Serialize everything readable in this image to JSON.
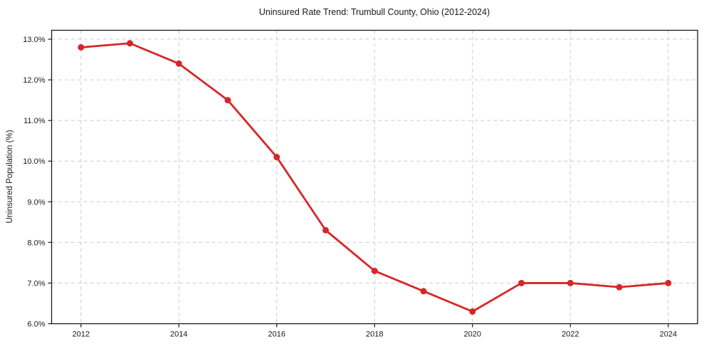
{
  "chart_data": {
    "type": "line",
    "title": "Uninsured Rate Trend: Trumbull County, Ohio (2012-2024)",
    "xlabel": "",
    "ylabel": "Uninsured Population (%)",
    "x": [
      2012,
      2013,
      2014,
      2015,
      2016,
      2017,
      2018,
      2019,
      2020,
      2021,
      2022,
      2023,
      2024
    ],
    "values": [
      12.8,
      12.9,
      12.4,
      11.5,
      10.1,
      8.3,
      7.3,
      6.8,
      6.3,
      7.0,
      7.0,
      6.9,
      7.0
    ],
    "xticks": {
      "values": [
        2012,
        2014,
        2016,
        2018,
        2020,
        2022,
        2024
      ],
      "labels": [
        "2012",
        "2014",
        "2016",
        "2018",
        "2020",
        "2022",
        "2024"
      ]
    },
    "yticks": {
      "values": [
        6,
        7,
        8,
        9,
        10,
        11,
        12,
        13
      ],
      "labels": [
        "6.0%",
        "7.0%",
        "8.0%",
        "9.0%",
        "10.0%",
        "11.0%",
        "12.0%",
        "13.0%"
      ]
    },
    "xlim": [
      2011.4,
      2024.6
    ],
    "ylim": [
      6.0,
      13.22
    ],
    "grid": true,
    "grid_style": "dashed",
    "legend": false,
    "colors": {
      "line": "#d62728",
      "marker": "#d62728",
      "grid": "#cccccc",
      "axis": "#1a1a1a",
      "text": "#1a1a1a",
      "background": "#ffffff"
    }
  }
}
